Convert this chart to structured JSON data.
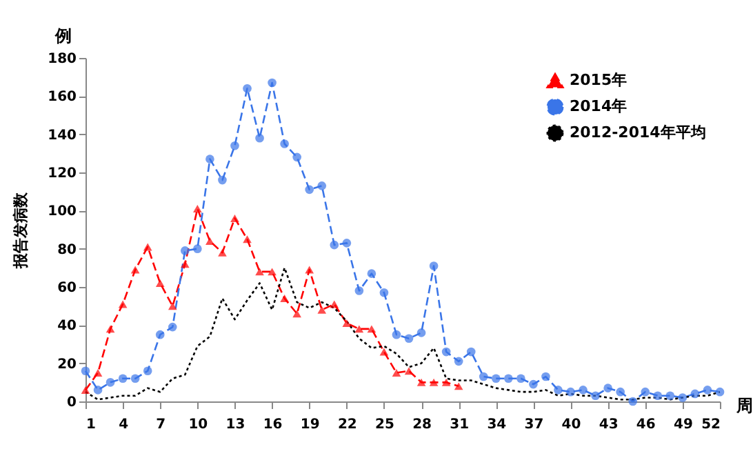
{
  "chart_data": {
    "type": "line",
    "ylabel": "报告发病数",
    "annotations": [
      "例",
      "周"
    ],
    "x": [
      1,
      2,
      3,
      4,
      5,
      6,
      7,
      8,
      9,
      10,
      11,
      12,
      13,
      14,
      15,
      16,
      17,
      18,
      19,
      20,
      21,
      22,
      23,
      24,
      25,
      26,
      27,
      28,
      29,
      30,
      31,
      32,
      33,
      34,
      35,
      36,
      37,
      38,
      39,
      40,
      41,
      42,
      43,
      44,
      45,
      46,
      47,
      48,
      49,
      50,
      51,
      52
    ],
    "xlim": [
      1,
      52
    ],
    "xticks": [
      1,
      4,
      7,
      10,
      13,
      16,
      19,
      22,
      25,
      28,
      31,
      34,
      37,
      40,
      43,
      46,
      49,
      52
    ],
    "ylim": [
      0,
      180
    ],
    "yticks": [
      0,
      20,
      40,
      60,
      80,
      100,
      120,
      140,
      160,
      180
    ],
    "legend": "top right",
    "grid": false,
    "series": [
      {
        "name": "2015年",
        "color": "#ff0000",
        "marker": "triangle",
        "line_style": "dashed",
        "values": [
          6,
          15,
          38,
          51,
          69,
          81,
          62,
          50,
          72,
          101,
          84,
          78,
          96,
          85,
          68,
          68,
          54,
          46,
          69,
          48,
          51,
          41,
          38,
          38,
          26,
          15,
          16,
          10,
          10,
          10,
          8,
          null,
          null,
          null,
          null,
          null,
          null,
          null,
          null,
          null,
          null,
          null,
          null,
          null,
          null,
          null,
          null,
          null,
          null,
          null,
          null,
          null
        ]
      },
      {
        "name": "2014年",
        "color": "#3a75e8",
        "marker": "circle",
        "line_style": "dashed",
        "values": [
          16,
          6,
          10,
          12,
          12,
          16,
          35,
          39,
          79,
          80,
          127,
          116,
          134,
          164,
          138,
          167,
          135,
          128,
          111,
          113,
          82,
          83,
          58,
          67,
          57,
          35,
          33,
          36,
          71,
          26,
          21,
          26,
          13,
          12,
          12,
          12,
          9,
          13,
          6,
          5,
          6,
          3,
          7,
          5,
          0,
          5,
          3,
          3,
          2,
          4,
          6,
          5
        ]
      },
      {
        "name": "2012-2014年平均",
        "color": "#000000",
        "marker": "none",
        "line_style": "dotted",
        "values": [
          5,
          1,
          2,
          3,
          3,
          7,
          5,
          12,
          14,
          29,
          34,
          54,
          43,
          53,
          62,
          48,
          70,
          52,
          49,
          52,
          49,
          42,
          33,
          28,
          29,
          25,
          18,
          20,
          28,
          12,
          11,
          11,
          9,
          7,
          6,
          5,
          5,
          6,
          3,
          4,
          3,
          3,
          2,
          1,
          1,
          2,
          2,
          1,
          2,
          3,
          3,
          5
        ]
      }
    ]
  }
}
